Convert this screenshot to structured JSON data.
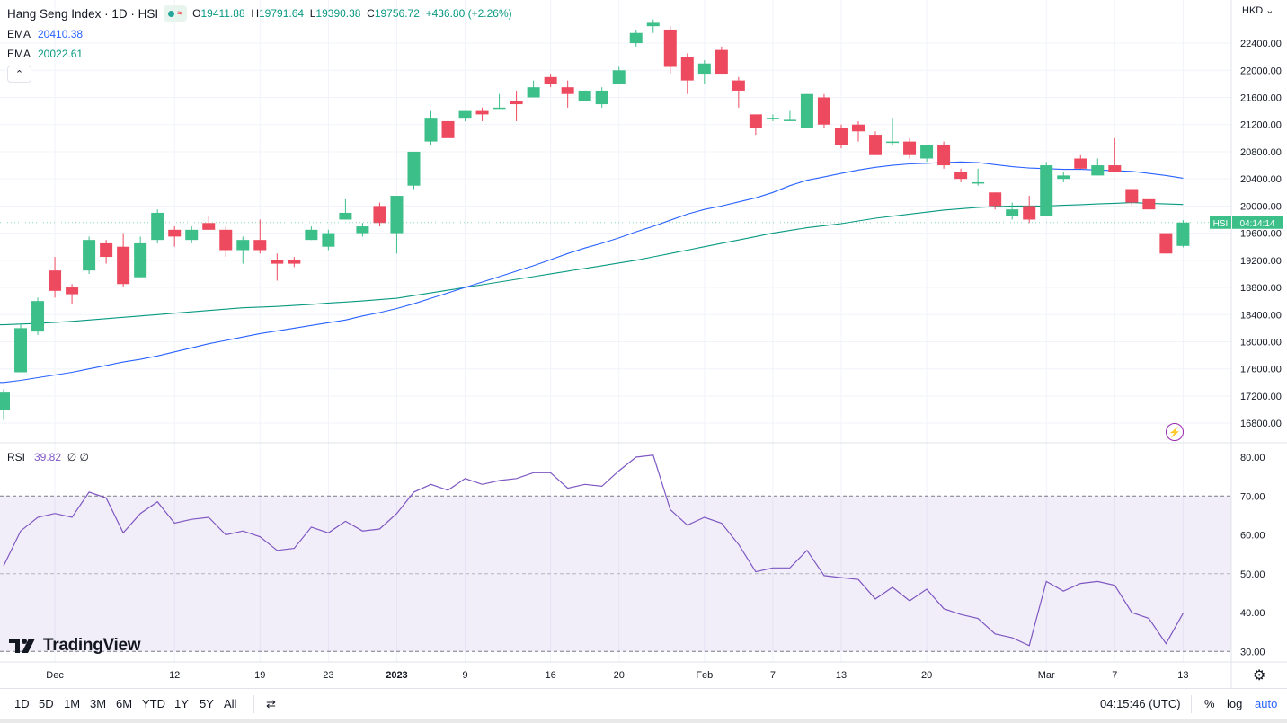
{
  "header": {
    "title": "Hang Seng Index · 1D · HSI",
    "badge_icon": "market-status-icon",
    "o_label": "O",
    "o_value": "19411.88",
    "h_label": "H",
    "h_value": "19791.64",
    "l_label": "L",
    "l_value": "19390.38",
    "c_label": "C",
    "c_value": "19756.72",
    "change": "+436.80 (+2.26%)"
  },
  "indicators": {
    "ema1_label": "EMA",
    "ema1_value": "20410.38",
    "ema1_color": "#2962ff",
    "ema2_label": "EMA",
    "ema2_value": "20022.61",
    "ema2_color": "#089981",
    "rsi_label": "RSI",
    "rsi_value": "39.82",
    "rsi_extra": "∅ ∅",
    "rsi_color": "#7e57c2"
  },
  "currency": "HKD",
  "price_tag": {
    "symbol": "HSI",
    "time": "04:14:14"
  },
  "bottom": {
    "ranges": [
      "1D",
      "5D",
      "1M",
      "3M",
      "6M",
      "YTD",
      "1Y",
      "5Y",
      "All"
    ],
    "clock": "04:15:46 (UTC)",
    "pct": "%",
    "log": "log",
    "auto": "auto"
  },
  "logo_text": "TradingView",
  "chart_data": {
    "type": "candlestick",
    "title": "Hang Seng Index · 1D · HSI",
    "ylim": [
      16600,
      22800
    ],
    "y_ticks": [
      16800,
      17200,
      17600,
      18000,
      18400,
      18800,
      19200,
      19600,
      20000,
      20400,
      20800,
      21200,
      21600,
      22000,
      22400
    ],
    "x_ticks": [
      "Dec",
      "12",
      "19",
      "23",
      "2023",
      "9",
      "16",
      "20",
      "Feb",
      "7",
      "13",
      "20",
      "Mar",
      "7",
      "13"
    ],
    "x_tick_index": [
      3,
      10,
      15,
      19,
      23,
      27,
      32,
      36,
      41,
      45,
      49,
      54,
      61,
      65,
      69
    ],
    "colors": {
      "up": "#26a69a",
      "down": "#ef5350",
      "up_fill": "#3dbf8a",
      "down_fill": "#ee4a5f"
    },
    "candles": [
      {
        "o": 17000,
        "h": 17300,
        "l": 16850,
        "c": 17250
      },
      {
        "o": 17550,
        "h": 18250,
        "l": 17550,
        "c": 18200
      },
      {
        "o": 18150,
        "h": 18650,
        "l": 18100,
        "c": 18600
      },
      {
        "o": 19050,
        "h": 19250,
        "l": 18650,
        "c": 18750
      },
      {
        "o": 18800,
        "h": 18850,
        "l": 18550,
        "c": 18700
      },
      {
        "o": 19050,
        "h": 19550,
        "l": 19000,
        "c": 19500
      },
      {
        "o": 19450,
        "h": 19500,
        "l": 19150,
        "c": 19250
      },
      {
        "o": 19400,
        "h": 19600,
        "l": 18800,
        "c": 18850
      },
      {
        "o": 18950,
        "h": 19550,
        "l": 18950,
        "c": 19450
      },
      {
        "o": 19500,
        "h": 19950,
        "l": 19450,
        "c": 19900
      },
      {
        "o": 19650,
        "h": 19700,
        "l": 19400,
        "c": 19550
      },
      {
        "o": 19500,
        "h": 19700,
        "l": 19450,
        "c": 19650
      },
      {
        "o": 19750,
        "h": 19850,
        "l": 19650,
        "c": 19650
      },
      {
        "o": 19650,
        "h": 19700,
        "l": 19250,
        "c": 19350
      },
      {
        "o": 19350,
        "h": 19550,
        "l": 19150,
        "c": 19500
      },
      {
        "o": 19500,
        "h": 19800,
        "l": 19300,
        "c": 19350
      },
      {
        "o": 19200,
        "h": 19300,
        "l": 18900,
        "c": 19150
      },
      {
        "o": 19200,
        "h": 19250,
        "l": 19100,
        "c": 19150
      },
      {
        "o": 19500,
        "h": 19700,
        "l": 19500,
        "c": 19650
      },
      {
        "o": 19400,
        "h": 19650,
        "l": 19350,
        "c": 19600
      },
      {
        "o": 19800,
        "h": 20100,
        "l": 19800,
        "c": 19900
      },
      {
        "o": 19600,
        "h": 19750,
        "l": 19550,
        "c": 19700
      },
      {
        "o": 20000,
        "h": 20050,
        "l": 19700,
        "c": 19750
      },
      {
        "o": 19600,
        "h": 20150,
        "l": 19300,
        "c": 20150
      },
      {
        "o": 20300,
        "h": 20800,
        "l": 20250,
        "c": 20800
      },
      {
        "o": 20950,
        "h": 21400,
        "l": 20900,
        "c": 21300
      },
      {
        "o": 21250,
        "h": 21300,
        "l": 20900,
        "c": 21000
      },
      {
        "o": 21300,
        "h": 21400,
        "l": 21250,
        "c": 21400
      },
      {
        "o": 21400,
        "h": 21450,
        "l": 21250,
        "c": 21350
      },
      {
        "o": 21450,
        "h": 21650,
        "l": 21450,
        "c": 21450
      },
      {
        "o": 21550,
        "h": 21700,
        "l": 21250,
        "c": 21500
      },
      {
        "o": 21600,
        "h": 21850,
        "l": 21600,
        "c": 21750
      },
      {
        "o": 21900,
        "h": 21950,
        "l": 21750,
        "c": 21800
      },
      {
        "o": 21750,
        "h": 21850,
        "l": 21450,
        "c": 21650
      },
      {
        "o": 21550,
        "h": 21700,
        "l": 21550,
        "c": 21700
      },
      {
        "o": 21500,
        "h": 21750,
        "l": 21450,
        "c": 21700
      },
      {
        "o": 21800,
        "h": 22050,
        "l": 21800,
        "c": 22000
      },
      {
        "o": 22400,
        "h": 22600,
        "l": 22350,
        "c": 22550
      },
      {
        "o": 22650,
        "h": 22750,
        "l": 22550,
        "c": 22700
      },
      {
        "o": 22600,
        "h": 22650,
        "l": 21950,
        "c": 22050
      },
      {
        "o": 22200,
        "h": 22250,
        "l": 21650,
        "c": 21850
      },
      {
        "o": 21950,
        "h": 22150,
        "l": 21800,
        "c": 22100
      },
      {
        "o": 22300,
        "h": 22350,
        "l": 21950,
        "c": 21950
      },
      {
        "o": 21850,
        "h": 21900,
        "l": 21450,
        "c": 21700
      },
      {
        "o": 21350,
        "h": 21350,
        "l": 21050,
        "c": 21150
      },
      {
        "o": 21300,
        "h": 21350,
        "l": 21250,
        "c": 21300
      },
      {
        "o": 21270,
        "h": 21400,
        "l": 21250,
        "c": 21270
      },
      {
        "o": 21150,
        "h": 21650,
        "l": 21150,
        "c": 21650
      },
      {
        "o": 21600,
        "h": 21650,
        "l": 21150,
        "c": 21200
      },
      {
        "o": 21150,
        "h": 21200,
        "l": 20850,
        "c": 20900
      },
      {
        "o": 21200,
        "h": 21250,
        "l": 20950,
        "c": 21100
      },
      {
        "o": 21050,
        "h": 21100,
        "l": 20750,
        "c": 20750
      },
      {
        "o": 20950,
        "h": 21300,
        "l": 20900,
        "c": 20950
      },
      {
        "o": 20950,
        "h": 21000,
        "l": 20700,
        "c": 20750
      },
      {
        "o": 20700,
        "h": 20900,
        "l": 20650,
        "c": 20900
      },
      {
        "o": 20900,
        "h": 20950,
        "l": 20550,
        "c": 20600
      },
      {
        "o": 20500,
        "h": 20550,
        "l": 20350,
        "c": 20400
      },
      {
        "o": 20350,
        "h": 20550,
        "l": 20300,
        "c": 20350
      },
      {
        "o": 20200,
        "h": 20200,
        "l": 19950,
        "c": 20000
      },
      {
        "o": 19850,
        "h": 20050,
        "l": 19800,
        "c": 19950
      },
      {
        "o": 20000,
        "h": 20150,
        "l": 19750,
        "c": 19800
      },
      {
        "o": 19850,
        "h": 20650,
        "l": 19850,
        "c": 20600
      },
      {
        "o": 20400,
        "h": 20500,
        "l": 20350,
        "c": 20450
      },
      {
        "o": 20700,
        "h": 20750,
        "l": 20550,
        "c": 20550
      },
      {
        "o": 20450,
        "h": 20700,
        "l": 20450,
        "c": 20600
      },
      {
        "o": 20600,
        "h": 21000,
        "l": 20500,
        "c": 20500
      },
      {
        "o": 20250,
        "h": 20250,
        "l": 20000,
        "c": 20050
      },
      {
        "o": 20100,
        "h": 20100,
        "l": 19950,
        "c": 19950
      },
      {
        "o": 19600,
        "h": 19600,
        "l": 19300,
        "c": 19300
      },
      {
        "o": 19411.88,
        "h": 19791.64,
        "l": 19390.38,
        "c": 19756.72
      }
    ],
    "ema_slow": [
      18250,
      18260,
      18270,
      18285,
      18300,
      18320,
      18340,
      18360,
      18380,
      18400,
      18420,
      18440,
      18460,
      18480,
      18500,
      18510,
      18520,
      18535,
      18550,
      18570,
      18585,
      18600,
      18620,
      18640,
      18680,
      18720,
      18760,
      18800,
      18840,
      18880,
      18920,
      18960,
      19000,
      19040,
      19080,
      19120,
      19160,
      19200,
      19250,
      19300,
      19350,
      19400,
      19450,
      19500,
      19550,
      19600,
      19640,
      19680,
      19710,
      19740,
      19780,
      19820,
      19850,
      19880,
      19910,
      19940,
      19960,
      19980,
      19990,
      20000,
      20000,
      20000,
      20010,
      20020,
      20030,
      20040,
      20050,
      20040,
      20030,
      20022.61
    ],
    "ema_fast": [
      17400,
      17430,
      17470,
      17510,
      17550,
      17600,
      17650,
      17700,
      17740,
      17790,
      17850,
      17910,
      17970,
      18020,
      18070,
      18120,
      18160,
      18200,
      18240,
      18280,
      18320,
      18380,
      18430,
      18490,
      18560,
      18640,
      18720,
      18800,
      18880,
      18960,
      19040,
      19120,
      19210,
      19300,
      19380,
      19450,
      19530,
      19620,
      19700,
      19790,
      19880,
      19950,
      20000,
      20060,
      20120,
      20200,
      20300,
      20380,
      20430,
      20480,
      20530,
      20570,
      20600,
      20620,
      20630,
      20640,
      20650,
      20640,
      20610,
      20580,
      20560,
      20550,
      20540,
      20540,
      20530,
      20520,
      20510,
      20480,
      20450,
      20410.38
    ],
    "rsi": {
      "ylim": [
        25,
        85
      ],
      "y_ticks": [
        30,
        40,
        50,
        60,
        70,
        80
      ],
      "overbought": 70,
      "oversold": 30,
      "values": [
        52,
        61,
        64.5,
        65.5,
        64.5,
        71,
        69.5,
        60.5,
        65.5,
        68.5,
        63,
        64,
        64.5,
        60,
        61,
        59.5,
        56,
        56.5,
        62,
        60.5,
        63.5,
        61,
        61.5,
        65.5,
        71,
        73,
        71.5,
        74.5,
        73,
        74,
        74.5,
        76,
        76,
        72,
        73,
        72.5,
        76.5,
        80,
        80.5,
        66.5,
        62.5,
        64.5,
        63,
        57.5,
        50.5,
        51.5,
        51.5,
        56,
        49.5,
        49,
        48.5,
        43.5,
        46.5,
        43,
        46,
        41,
        39.5,
        38.5,
        34.5,
        33.5,
        31.5,
        48,
        45.5,
        47.5,
        48,
        47,
        40,
        38.5,
        32,
        39.82
      ]
    }
  }
}
